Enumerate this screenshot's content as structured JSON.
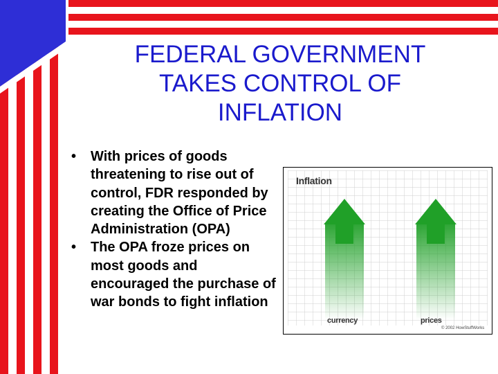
{
  "slide": {
    "title_lines": [
      "FEDERAL GOVERNMENT",
      "TAKES CONTROL OF",
      "INFLATION"
    ],
    "bullets": [
      "With prices of goods threatening to rise out of control, FDR responded by creating the Office of Price Administration (OPA)",
      "The OPA froze prices on most goods and encouraged the purchase of war bonds to fight inflation"
    ]
  },
  "figure": {
    "title": "Inflation",
    "labels": [
      "currency",
      "prices"
    ],
    "copyright": "© 2002 HowStuffWorks"
  },
  "colors": {
    "title": "#1a1acc",
    "stripe_red": "#e8141c",
    "canton_blue": "#2e2ed6",
    "arrow_green": "#20a028"
  }
}
